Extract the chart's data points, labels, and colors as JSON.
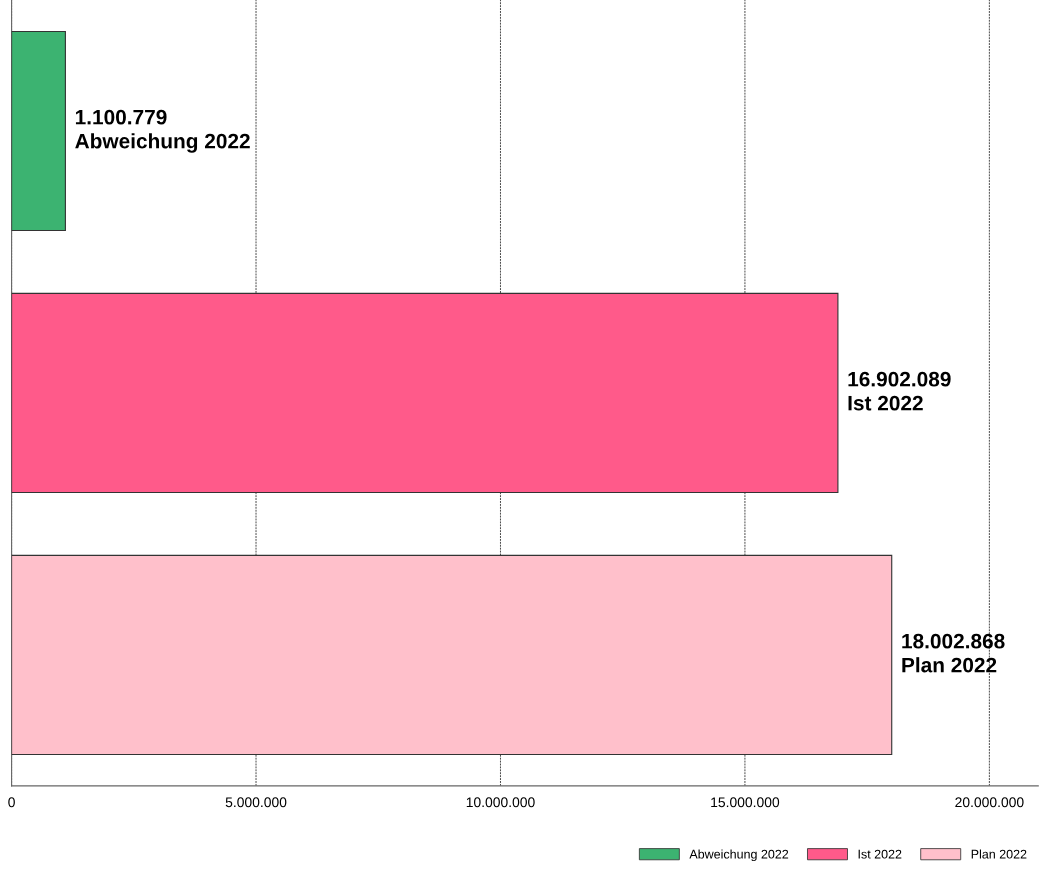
{
  "chart_data": {
    "type": "bar",
    "orientation": "horizontal",
    "categories": [
      null,
      null,
      null
    ],
    "series": [
      {
        "name": "Abweichung 2022",
        "color": "#3cb371",
        "values": [
          1100779,
          null,
          null
        ],
        "value_labels": [
          "1.100.779",
          null,
          null
        ]
      },
      {
        "name": "Ist 2022",
        "color": "#ff5a8a",
        "values": [
          null,
          16902089,
          null
        ],
        "value_labels": [
          null,
          "16.902.089",
          null
        ]
      },
      {
        "name": "Plan 2022",
        "color": "#ffc0cb",
        "values": [
          null,
          null,
          18002868
        ],
        "value_labels": [
          null,
          null,
          "18.002.868"
        ]
      }
    ],
    "xlim": [
      0,
      21000000
    ],
    "xticks": [
      0,
      {
        "value": 5000000,
        "label": "5.000.000"
      },
      {
        "value": 10000000,
        "label": "10.000.000"
      },
      {
        "value": 15000000,
        "label": "15.000.000"
      },
      {
        "value": 20000000,
        "label": "20.000.000"
      }
    ],
    "grid": "x",
    "legend": "bottom right"
  }
}
